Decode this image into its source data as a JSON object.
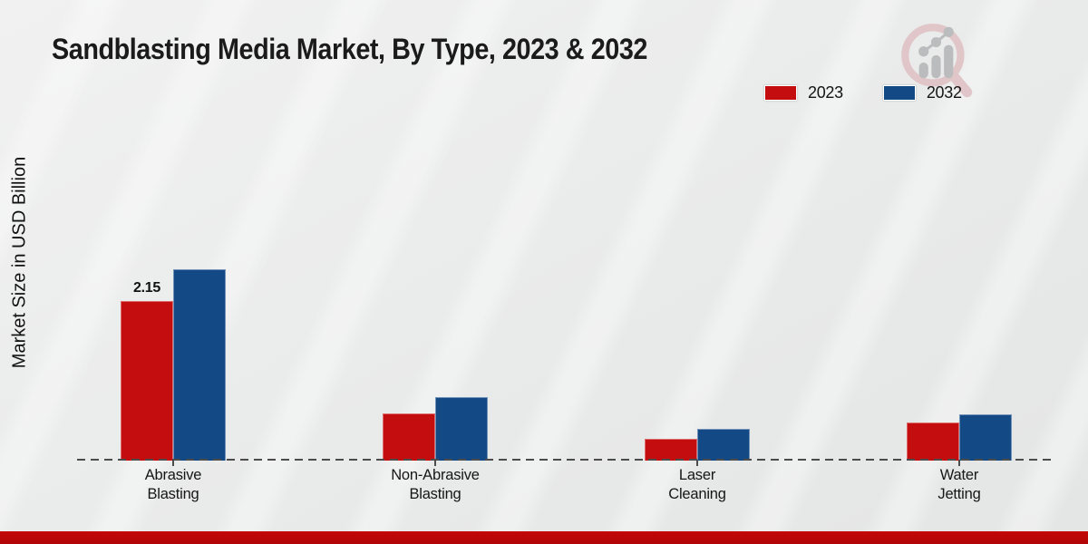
{
  "title": "Sandblasting Media Market, By Type, 2023 & 2032",
  "y_axis_label": "Market Size in USD Billion",
  "legend": {
    "items": [
      {
        "label": "2023",
        "color": "#c40d0e"
      },
      {
        "label": "2032",
        "color": "#134a86"
      }
    ]
  },
  "chart_data": {
    "type": "bar",
    "title": "Sandblasting Media Market, By Type, 2023 & 2032",
    "xlabel": "",
    "ylabel": "Market Size in USD Billion",
    "categories": [
      "Abrasive Blasting",
      "Non-Abrasive Blasting",
      "Laser Cleaning",
      "Water Jetting"
    ],
    "category_lines": [
      [
        "Abrasive",
        "Blasting"
      ],
      [
        "Non-Abrasive",
        "Blasting"
      ],
      [
        "Laser",
        "Cleaning"
      ],
      [
        "Water",
        "Jetting"
      ]
    ],
    "series": [
      {
        "name": "2023",
        "color": "#c40d0e",
        "values": [
          2.15,
          0.63,
          0.28,
          0.5
        ],
        "data_labels": [
          "2.15",
          "",
          "",
          ""
        ]
      },
      {
        "name": "2032",
        "color": "#134a86",
        "values": [
          2.58,
          0.85,
          0.42,
          0.61
        ],
        "data_labels": [
          "",
          "",
          "",
          ""
        ]
      }
    ],
    "ylim": [
      0,
      3.2
    ],
    "grid": false,
    "legend_position": "top-right",
    "x_axis_style": "dashed-line",
    "bar_value_unit": "USD Billion"
  },
  "footer": {
    "accent_color": "#b90607"
  },
  "logo": {
    "icon": "magnifier-chart-logo"
  }
}
